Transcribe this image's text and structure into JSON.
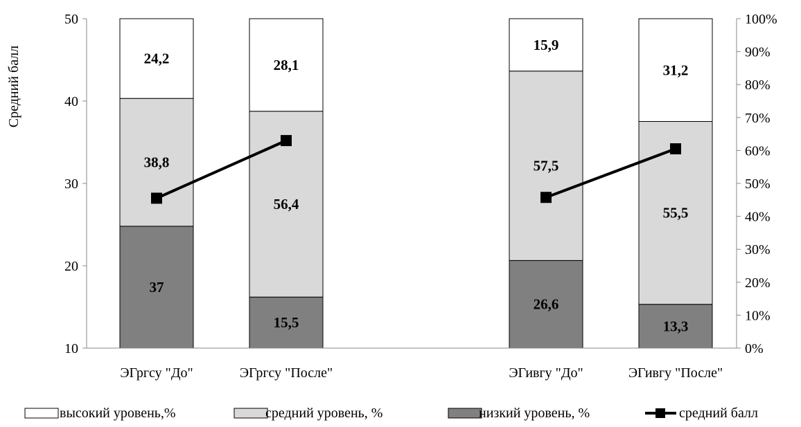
{
  "chart_data": {
    "type": "bar",
    "stacked": true,
    "categories": [
      "ЭГргсу \"До\"",
      "ЭГргсу \"После\"",
      "ЭГивгу \"До\"",
      "ЭГивгу \"После\""
    ],
    "series": [
      {
        "name": "низкий уровень, %",
        "values": [
          37,
          15.5,
          26.6,
          13.3
        ],
        "labels": [
          "37",
          "15,5",
          "26,6",
          "13,3"
        ],
        "color": "#808080"
      },
      {
        "name": "средний уровень, %",
        "values": [
          38.8,
          56.4,
          57.5,
          55.5
        ],
        "labels": [
          "38,8",
          "56,4",
          "57,5",
          "55,5"
        ],
        "color": "#d9d9d9"
      },
      {
        "name": "высокий уровень,%",
        "values": [
          24.2,
          28.1,
          15.9,
          31.2
        ],
        "labels": [
          "24,2",
          "28,1",
          "15,9",
          "31,2"
        ],
        "color": "#ffffff"
      }
    ],
    "line_series": {
      "name": "средний балл",
      "values": [
        28.2,
        35.2,
        28.3,
        34.2
      ],
      "color": "#000000",
      "marker": "square"
    },
    "ylabel": "Средний балл",
    "y_left": {
      "min": 10,
      "max": 50,
      "ticks": [
        "10",
        "20",
        "30",
        "40",
        "50"
      ]
    },
    "y_right": {
      "min": 0,
      "max": 100,
      "ticks": [
        "0%",
        "10%",
        "20%",
        "30%",
        "40%",
        "50%",
        "60%",
        "70%",
        "80%",
        "90%",
        "100%"
      ]
    },
    "legend": {
      "position": "bottom",
      "items": [
        "высокий уровень,%",
        "средний уровень, %",
        "низкий уровень, %",
        "средний балл"
      ]
    },
    "grid": false
  }
}
